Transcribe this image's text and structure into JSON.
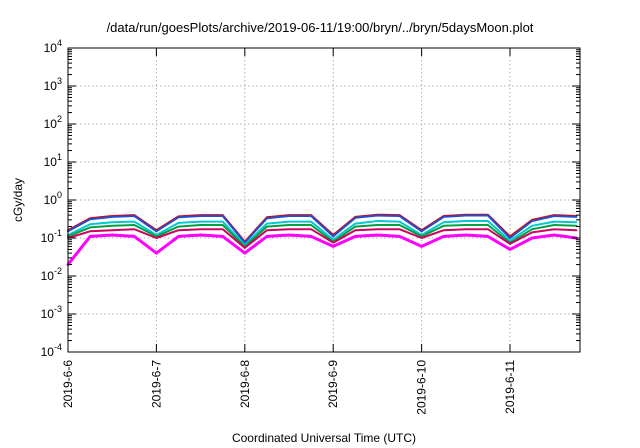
{
  "chart_data": {
    "type": "line",
    "title": "/data/run/goesPlots/archive/2019-06-11/19:00/bryn/../bryn/5daysMoon.plot",
    "xlabel": "Coordinated Universal Time (UTC)",
    "ylabel": "cGy/day",
    "yscale": "log",
    "ylim": [
      0.0001,
      10000
    ],
    "xlim": [
      "2019-06-06",
      "2019-06-11T19:00"
    ],
    "grid": true,
    "xticks": [
      "2019-6-6",
      "2019-6-7",
      "2019-6-8",
      "2019-6-9",
      "2019-6-10",
      "2019-6-11"
    ],
    "yticks": [
      {
        "base": "10",
        "exp": "-4"
      },
      {
        "base": "10",
        "exp": "-3"
      },
      {
        "base": "10",
        "exp": "-2"
      },
      {
        "base": "10",
        "exp": "-1"
      },
      {
        "base": "10",
        "exp": "0"
      },
      {
        "base": "10",
        "exp": "1"
      },
      {
        "base": "10",
        "exp": "2"
      },
      {
        "base": "10",
        "exp": "3"
      },
      {
        "base": "10",
        "exp": "4"
      }
    ],
    "x": [
      "2019-06-06 00:00",
      "2019-06-06 06:00",
      "2019-06-06 12:00",
      "2019-06-06 18:00",
      "2019-06-07 00:00",
      "2019-06-07 06:00",
      "2019-06-07 12:00",
      "2019-06-07 18:00",
      "2019-06-08 00:00",
      "2019-06-08 06:00",
      "2019-06-08 12:00",
      "2019-06-08 18:00",
      "2019-06-09 00:00",
      "2019-06-09 06:00",
      "2019-06-09 12:00",
      "2019-06-09 18:00",
      "2019-06-10 00:00",
      "2019-06-10 06:00",
      "2019-06-10 12:00",
      "2019-06-10 18:00",
      "2019-06-11 00:00",
      "2019-06-11 06:00",
      "2019-06-11 12:00",
      "2019-06-11 18:00"
    ],
    "series": [
      {
        "color": "#e00000",
        "values": [
          0.16,
          0.33,
          0.38,
          0.4,
          0.16,
          0.37,
          0.4,
          0.4,
          0.08,
          0.35,
          0.4,
          0.4,
          0.12,
          0.36,
          0.41,
          0.4,
          0.16,
          0.38,
          0.41,
          0.41,
          0.11,
          0.3,
          0.4,
          0.38
        ]
      },
      {
        "color": "#2050d0",
        "values": [
          0.15,
          0.31,
          0.36,
          0.38,
          0.15,
          0.35,
          0.38,
          0.38,
          0.075,
          0.33,
          0.38,
          0.38,
          0.11,
          0.34,
          0.39,
          0.38,
          0.15,
          0.36,
          0.39,
          0.39,
          0.1,
          0.28,
          0.38,
          0.36
        ]
      },
      {
        "color": "#00c8d0",
        "values": [
          0.12,
          0.23,
          0.26,
          0.27,
          0.12,
          0.25,
          0.27,
          0.27,
          0.065,
          0.24,
          0.27,
          0.27,
          0.09,
          0.24,
          0.28,
          0.27,
          0.12,
          0.26,
          0.28,
          0.28,
          0.085,
          0.21,
          0.27,
          0.26
        ]
      },
      {
        "color": "#00a040",
        "values": [
          0.11,
          0.19,
          0.21,
          0.22,
          0.11,
          0.2,
          0.22,
          0.22,
          0.06,
          0.2,
          0.22,
          0.22,
          0.08,
          0.2,
          0.22,
          0.22,
          0.11,
          0.21,
          0.22,
          0.22,
          0.075,
          0.17,
          0.22,
          0.21
        ]
      },
      {
        "color": "#d00060",
        "values": [
          0.1,
          0.15,
          0.16,
          0.17,
          0.1,
          0.16,
          0.17,
          0.17,
          0.055,
          0.16,
          0.17,
          0.17,
          0.075,
          0.16,
          0.17,
          0.17,
          0.1,
          0.16,
          0.17,
          0.17,
          0.07,
          0.14,
          0.17,
          0.16
        ]
      },
      {
        "color": "#ff00ff",
        "values": [
          0.02,
          0.11,
          0.12,
          0.11,
          0.04,
          0.11,
          0.12,
          0.11,
          0.04,
          0.11,
          0.12,
          0.11,
          0.06,
          0.11,
          0.12,
          0.11,
          0.06,
          0.11,
          0.12,
          0.11,
          0.05,
          0.1,
          0.12,
          0.1
        ]
      }
    ]
  }
}
